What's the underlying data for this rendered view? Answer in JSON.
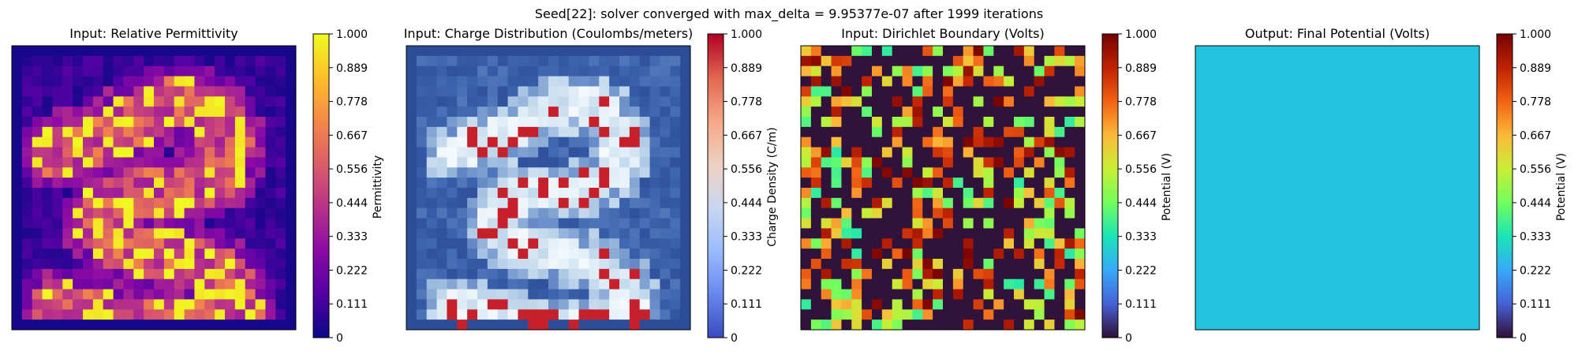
{
  "figure": {
    "suptitle": "Seed[22]: solver converged with max_delta = 9.95377e-07 after 1999 iterations"
  },
  "colormaps": {
    "plasma": [
      "#0d0887",
      "#5302a3",
      "#8b0aa5",
      "#b83289",
      "#db5c68",
      "#f48849",
      "#febd2a",
      "#f0f921"
    ],
    "coolwarm": [
      "#3b4cc0",
      "#6788ee",
      "#9abbff",
      "#c9d7f0",
      "#edd1c2",
      "#f7a889",
      "#e26952",
      "#b40426"
    ],
    "blues_field": [
      "#2c4a96",
      "#3357a3",
      "#3f67b0",
      "#5a80c0",
      "#7fa1d2",
      "#b6cfe8",
      "#dcebf5",
      "#f4f9fc"
    ],
    "turbo": [
      "#30123b",
      "#4662d7",
      "#36aaf9",
      "#1ae4b6",
      "#72fe5e",
      "#c7ef34",
      "#fabb3a",
      "#f36515",
      "#c22402",
      "#7a0403"
    ]
  },
  "chart_data": [
    {
      "type": "heatmap",
      "title": "Input: Relative Permittivity",
      "colorbar_label": "Permittivity",
      "colormap": "plasma",
      "vmin": 0,
      "vmax": 1,
      "ticks": [
        "0",
        "0.111",
        "0.222",
        "0.333",
        "0.444",
        "0.556",
        "0.667",
        "0.778",
        "0.889",
        "1.000"
      ],
      "grid_size": 28,
      "pattern": "permittivity"
    },
    {
      "type": "heatmap",
      "title": "Input: Charge Distribution (Coulombs/meters)",
      "colorbar_label": "Charge Density (C/m)",
      "colormap": "coolwarm",
      "field_colormap": "blues_field",
      "vmin": 0,
      "vmax": 1,
      "ticks": [
        "0",
        "0.111",
        "0.222",
        "0.333",
        "0.444",
        "0.556",
        "0.667",
        "0.778",
        "0.889",
        "1.000"
      ],
      "grid_size": 28,
      "pattern": "charge"
    },
    {
      "type": "heatmap",
      "title": "Input: Dirichlet Boundary (Volts)",
      "colorbar_label": "Potential (V)",
      "colormap": "turbo",
      "vmin": 0,
      "vmax": 1,
      "ticks": [
        "0",
        "0.111",
        "0.222",
        "0.333",
        "0.444",
        "0.556",
        "0.667",
        "0.778",
        "0.889",
        "1.000"
      ],
      "grid_size": 28,
      "pattern": "boundary"
    },
    {
      "type": "heatmap",
      "title": "Output: Final Potential (Volts)",
      "colorbar_label": "Potential (V)",
      "colormap": "turbo",
      "vmin": 0,
      "vmax": 1,
      "ticks": [
        "0",
        "0.111",
        "0.222",
        "0.333",
        "0.444",
        "0.556",
        "0.667",
        "0.778",
        "0.889",
        "1.000"
      ],
      "grid_size": 1,
      "uniform_value": 0.3,
      "uniform_color": "#22c3df"
    }
  ]
}
